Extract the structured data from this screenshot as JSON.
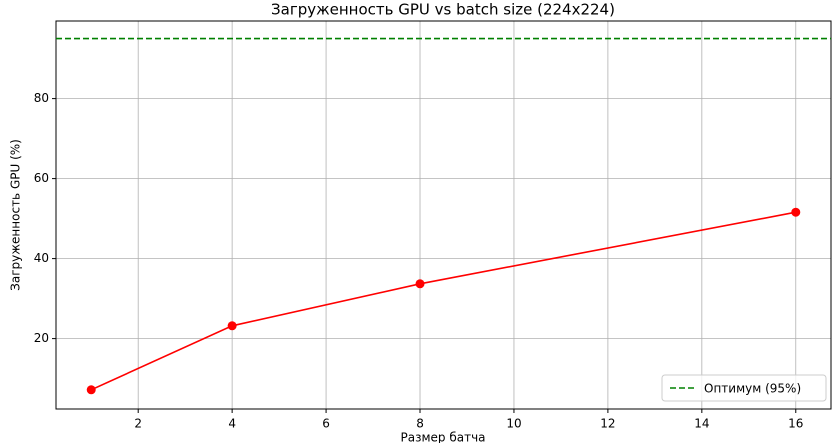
{
  "chart_data": {
    "type": "line",
    "title": "Загруженность GPU vs batch size (224x224)",
    "x_label": "Размер батча",
    "y_label": "Загруженность GPU (%)",
    "x": [
      1,
      4,
      8,
      16
    ],
    "series": [
      {
        "color": "#ff0000",
        "values": [
          7.2,
          23.2,
          33.7,
          51.6
        ]
      }
    ],
    "reference_line": {
      "name": "Оптимум (95%)",
      "value": 95,
      "color": "#008000"
    },
    "xlim": [
      0.25,
      16.75
    ],
    "xticks": [
      2,
      4,
      6,
      8,
      10,
      12,
      14,
      16
    ],
    "ylim": [
      2.4,
      99.4
    ],
    "yticks": [
      20,
      40,
      60,
      80
    ],
    "grid": true,
    "legend": "lower right"
  }
}
